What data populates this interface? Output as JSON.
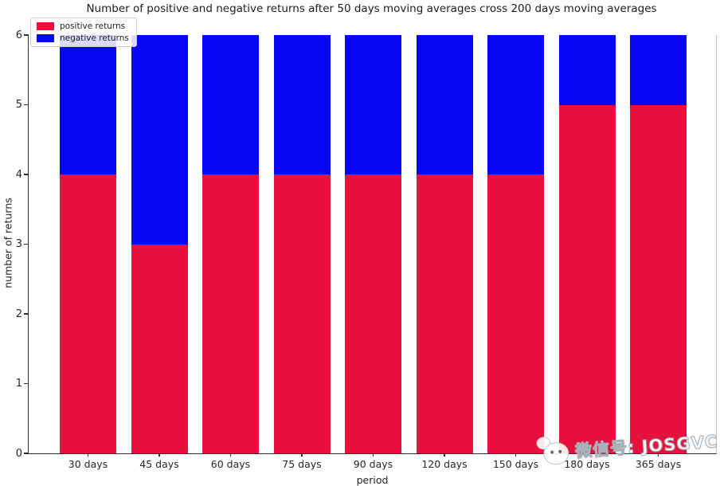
{
  "title": "Number of positive and negative returns after 50 days moving averages cross 200 days moving averages",
  "axes": {
    "ylabel": "number of returns",
    "xlabel": "period",
    "yticks": [
      0,
      1,
      2,
      3,
      4,
      5,
      6
    ]
  },
  "legend": {
    "items": [
      {
        "label": "positive returns",
        "color": "#e8103c"
      },
      {
        "label": "negative returns",
        "color": "#0707f5"
      }
    ]
  },
  "watermark": {
    "text": "微信号: JOSGVC"
  },
  "colors": {
    "positive": "#e8103c",
    "negative": "#0707f5",
    "axis": "#2e2e2e",
    "background": "#ffffff"
  },
  "chart_data": {
    "type": "bar",
    "stacked": true,
    "title": "Number of positive and negative returns after 50 days moving averages cross 200 days moving averages",
    "categories": [
      "30 days",
      "45 days",
      "60 days",
      "75 days",
      "90 days",
      "120 days",
      "150 days",
      "180 days",
      "365 days"
    ],
    "series": [
      {
        "name": "positive returns",
        "color": "#e8103c",
        "values": [
          4,
          3,
          4,
          4,
          4,
          4,
          4,
          5,
          5
        ]
      },
      {
        "name": "negative returns",
        "color": "#0707f5",
        "values": [
          2,
          3,
          2,
          2,
          2,
          2,
          2,
          1,
          1
        ]
      }
    ],
    "xlabel": "period",
    "ylabel": "number of returns",
    "ylim": [
      0,
      6
    ],
    "grid": false,
    "legend_position": "upper left"
  }
}
